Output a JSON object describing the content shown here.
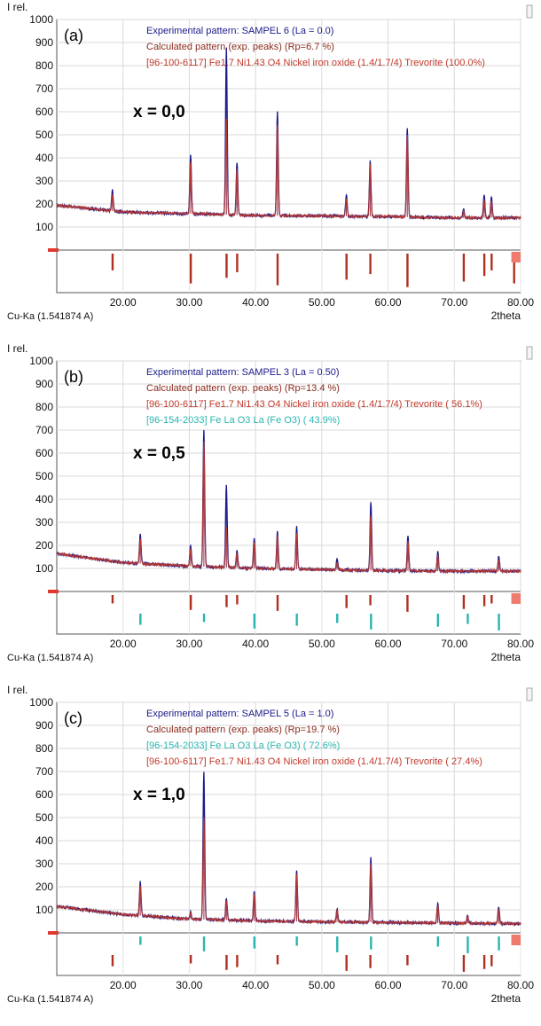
{
  "chart_data": [
    {
      "type": "line",
      "panel_label": "(a)",
      "composition": "x = 0,0",
      "ylabel": "I rel.",
      "xlabel": "2theta",
      "radiation": "Cu-Ka (1.541874 A)",
      "xlim": [
        10,
        80
      ],
      "ylim": [
        0,
        1000
      ],
      "x_ticks": [
        "20.00",
        "30.00",
        "40.00",
        "50.00",
        "60.00",
        "70.00",
        "80.00"
      ],
      "y_ticks": [
        "100",
        "200",
        "300",
        "400",
        "500",
        "600",
        "700",
        "800",
        "900",
        "1000"
      ],
      "legend": [
        {
          "text": "Experimental pattern: SAMPEL 6 (La = 0.0)",
          "color": "#1a1a8c"
        },
        {
          "text": "Calculated pattern (exp. peaks) (Rp=6.7 %)",
          "color": "#8b2a1c"
        },
        {
          "text": "[96-100-6117] Fe1.7 Ni1.43 O4 Nickel iron oxide (1.4/1.7/4) Trevorite (100.0%)",
          "color": "#c0392b"
        }
      ],
      "baseline": [
        [
          10,
          195
        ],
        [
          20,
          165
        ],
        [
          30,
          158
        ],
        [
          40,
          150
        ],
        [
          50,
          148
        ],
        [
          60,
          145
        ],
        [
          70,
          140
        ],
        [
          80,
          140
        ]
      ],
      "series": [
        {
          "name": "Experimental pattern",
          "color": "#1a1a8c",
          "peaks": [
            [
              18.4,
              260
            ],
            [
              30.2,
              410
            ],
            [
              35.6,
              880
            ],
            [
              37.2,
              380
            ],
            [
              43.3,
              600
            ],
            [
              53.7,
              240
            ],
            [
              57.3,
              390
            ],
            [
              62.9,
              530
            ],
            [
              71.4,
              180
            ],
            [
              74.5,
              240
            ],
            [
              75.6,
              230
            ]
          ]
        },
        {
          "name": "Calculated pattern",
          "color": "#c0392b",
          "peaks": [
            [
              18.4,
              240
            ],
            [
              30.2,
              380
            ],
            [
              35.6,
              570
            ],
            [
              37.2,
              350
            ],
            [
              43.3,
              540
            ],
            [
              53.7,
              220
            ],
            [
              57.3,
              370
            ],
            [
              62.9,
              500
            ],
            [
              71.4,
              170
            ],
            [
              74.5,
              220
            ],
            [
              75.6,
              210
            ]
          ]
        }
      ],
      "phases": [
        {
          "name": "[96-100-6117] Trevorite",
          "color": "#b03020",
          "positions": [
            18.4,
            30.2,
            35.6,
            37.2,
            43.3,
            53.7,
            57.3,
            62.9,
            71.4,
            74.5,
            75.6,
            79.0
          ]
        }
      ]
    },
    {
      "type": "line",
      "panel_label": "(b)",
      "composition": "x = 0,5",
      "ylabel": "I rel.",
      "xlabel": "2theta",
      "radiation": "Cu-Ka (1.541874 A)",
      "xlim": [
        10,
        80
      ],
      "ylim": [
        0,
        1000
      ],
      "x_ticks": [
        "20.00",
        "30.00",
        "40.00",
        "50.00",
        "60.00",
        "70.00",
        "80.00"
      ],
      "y_ticks": [
        "100",
        "200",
        "300",
        "400",
        "500",
        "600",
        "700",
        "800",
        "900",
        "1000"
      ],
      "legend": [
        {
          "text": "Experimental pattern: SAMPEL 3 (La = 0.50)",
          "color": "#1a1a8c"
        },
        {
          "text": "Calculated pattern (exp. peaks) (Rp=13.4 %)",
          "color": "#8b2a1c"
        },
        {
          "text": "[96-100-6117] Fe1.7 Ni1.43 O4 Nickel iron oxide (1.4/1.7/4) Trevorite ( 56.1%)",
          "color": "#c0392b"
        },
        {
          "text": "[96-154-2033] Fe La O3 La (Fe O3) ( 43.9%)",
          "color": "#2ab5b0"
        }
      ],
      "baseline": [
        [
          10,
          165
        ],
        [
          20,
          125
        ],
        [
          30,
          110
        ],
        [
          40,
          100
        ],
        [
          50,
          95
        ],
        [
          60,
          90
        ],
        [
          70,
          88
        ],
        [
          80,
          88
        ]
      ],
      "series": [
        {
          "name": "Experimental pattern",
          "color": "#1a1a8c",
          "peaks": [
            [
              22.6,
              250
            ],
            [
              30.2,
              200
            ],
            [
              32.2,
              700
            ],
            [
              35.6,
              460
            ],
            [
              37.2,
              180
            ],
            [
              39.8,
              230
            ],
            [
              43.3,
              260
            ],
            [
              46.2,
              280
            ],
            [
              52.3,
              140
            ],
            [
              57.4,
              390
            ],
            [
              63.0,
              240
            ],
            [
              67.5,
              170
            ],
            [
              76.7,
              150
            ]
          ]
        },
        {
          "name": "Calculated pattern",
          "color": "#c0392b",
          "peaks": [
            [
              22.6,
              230
            ],
            [
              30.2,
              185
            ],
            [
              32.2,
              650
            ],
            [
              35.6,
              280
            ],
            [
              37.2,
              165
            ],
            [
              39.8,
              210
            ],
            [
              43.3,
              240
            ],
            [
              46.2,
              250
            ],
            [
              52.3,
              125
            ],
            [
              57.4,
              330
            ],
            [
              63.0,
              220
            ],
            [
              67.5,
              155
            ],
            [
              76.7,
              135
            ]
          ]
        }
      ],
      "phases": [
        {
          "name": "[96-100-6117] Trevorite",
          "color": "#b03020",
          "positions": [
            18.4,
            30.2,
            35.6,
            37.2,
            43.3,
            53.7,
            57.3,
            62.9,
            71.4,
            74.5,
            75.6
          ]
        },
        {
          "name": "[96-154-2033] LaFeO3",
          "color": "#2ab5b0",
          "positions": [
            22.6,
            32.2,
            39.8,
            46.2,
            52.3,
            57.4,
            67.5,
            72.0,
            76.7
          ]
        }
      ]
    },
    {
      "type": "line",
      "panel_label": "(c)",
      "composition": "x = 1,0",
      "ylabel": "I rel.",
      "xlabel": "2theta",
      "radiation": "Cu-Ka (1.541874 A)",
      "xlim": [
        10,
        80
      ],
      "ylim": [
        0,
        1000
      ],
      "x_ticks": [
        "20.00",
        "30.00",
        "40.00",
        "50.00",
        "60.00",
        "70.00",
        "80.00"
      ],
      "y_ticks": [
        "100",
        "200",
        "300",
        "400",
        "500",
        "600",
        "700",
        "800",
        "900",
        "1000"
      ],
      "legend": [
        {
          "text": "Experimental pattern: SAMPEL 5 (La = 1.0)",
          "color": "#1a1a8c"
        },
        {
          "text": "Calculated pattern (exp. peaks) (Rp=19.7 %)",
          "color": "#8b2a1c"
        },
        {
          "text": "[96-154-2033] Fe La O3 La (Fe O3) ( 72.6%)",
          "color": "#2ab5b0"
        },
        {
          "text": "[96-100-6117] Fe1.7 Ni1.43 O4 Nickel iron oxide (1.4/1.7/4) Trevorite ( 27.4%)",
          "color": "#c0392b"
        }
      ],
      "baseline": [
        [
          10,
          115
        ],
        [
          20,
          80
        ],
        [
          30,
          60
        ],
        [
          40,
          52
        ],
        [
          50,
          48
        ],
        [
          60,
          45
        ],
        [
          70,
          42
        ],
        [
          80,
          40
        ]
      ],
      "series": [
        {
          "name": "Experimental pattern",
          "color": "#1a1a8c",
          "peaks": [
            [
              22.6,
              220
            ],
            [
              30.2,
              90
            ],
            [
              32.2,
              700
            ],
            [
              35.6,
              150
            ],
            [
              39.8,
              180
            ],
            [
              46.2,
              270
            ],
            [
              52.3,
              105
            ],
            [
              57.4,
              330
            ],
            [
              67.5,
              130
            ],
            [
              72.0,
              75
            ],
            [
              76.7,
              110
            ]
          ]
        },
        {
          "name": "Calculated pattern",
          "color": "#c0392b",
          "peaks": [
            [
              22.6,
              205
            ],
            [
              30.2,
              85
            ],
            [
              32.2,
              500
            ],
            [
              35.6,
              140
            ],
            [
              39.8,
              165
            ],
            [
              46.2,
              255
            ],
            [
              52.3,
              98
            ],
            [
              57.4,
              300
            ],
            [
              67.5,
              120
            ],
            [
              72.0,
              70
            ],
            [
              76.7,
              100
            ]
          ]
        }
      ],
      "phases": [
        {
          "name": "[96-154-2033] LaFeO3",
          "color": "#2ab5b0",
          "positions": [
            22.6,
            32.2,
            39.8,
            46.2,
            52.3,
            57.4,
            67.5,
            72.0,
            76.7
          ]
        },
        {
          "name": "[96-100-6117] Trevorite",
          "color": "#b03020",
          "positions": [
            18.4,
            30.2,
            35.6,
            37.2,
            43.3,
            53.7,
            57.3,
            62.9,
            71.4,
            74.5,
            75.6
          ]
        }
      ]
    }
  ]
}
